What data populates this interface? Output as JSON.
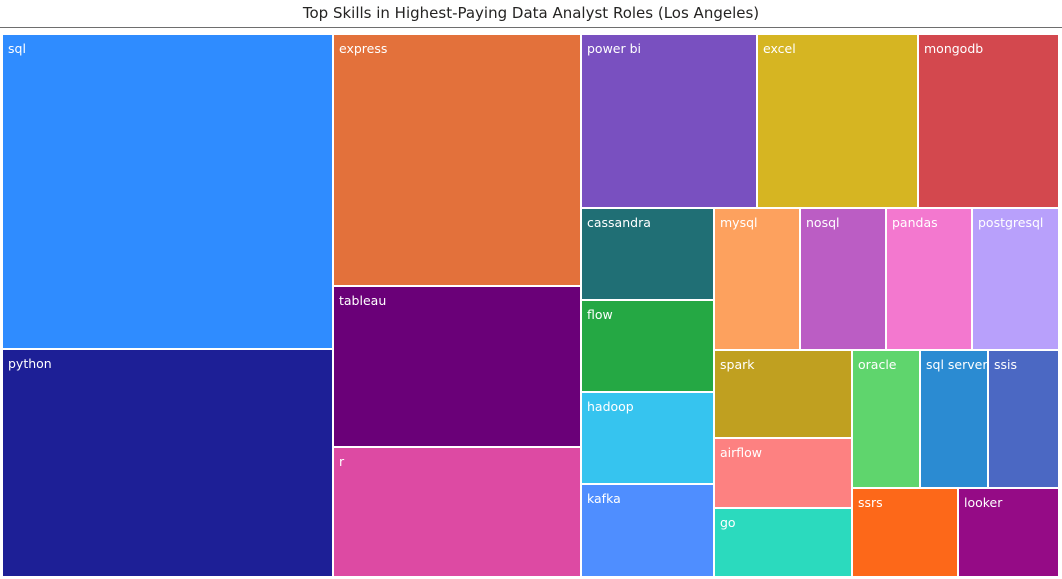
{
  "chart_data": {
    "type": "treemap",
    "title": "Top Skills in Highest-Paying Data Analyst Roles (Los Angeles)",
    "items": [
      {
        "label": "sql",
        "value": 10,
        "color": "#2f8cff"
      },
      {
        "label": "python",
        "value": 7.5,
        "color": "#1d1f96"
      },
      {
        "label": "express",
        "value": 5.5,
        "color": "#e3713b"
      },
      {
        "label": "tableau",
        "value": 4,
        "color": "#6a0078"
      },
      {
        "label": "r",
        "value": 3.5,
        "color": "#dd4aa3"
      },
      {
        "label": "power bi",
        "value": 2.5,
        "color": "#7950c0"
      },
      {
        "label": "excel",
        "value": 2.5,
        "color": "#d6b522"
      },
      {
        "label": "mongodb",
        "value": 2.5,
        "color": "#d3484e"
      },
      {
        "label": "cassandra",
        "value": 1,
        "color": "#206f75"
      },
      {
        "label": "flow",
        "value": 1,
        "color": "#25a844"
      },
      {
        "label": "hadoop",
        "value": 1,
        "color": "#36c4ef"
      },
      {
        "label": "kafka",
        "value": 1,
        "color": "#4f8eff"
      },
      {
        "label": "mysql",
        "value": 1,
        "color": "#fda15e"
      },
      {
        "label": "nosql",
        "value": 1,
        "color": "#bb5dc4"
      },
      {
        "label": "pandas",
        "value": 1,
        "color": "#f378cf"
      },
      {
        "label": "postgresql",
        "value": 1,
        "color": "#b8a0fb"
      },
      {
        "label": "spark",
        "value": 1,
        "color": "#c0a020"
      },
      {
        "label": "airflow",
        "value": 1,
        "color": "#fd8181"
      },
      {
        "label": "go",
        "value": 1,
        "color": "#2bdabe"
      },
      {
        "label": "oracle",
        "value": 1,
        "color": "#5fd56d"
      },
      {
        "label": "sql server",
        "value": 1,
        "color": "#2b8bd2"
      },
      {
        "label": "ssis",
        "value": 1,
        "color": "#4b68c3"
      },
      {
        "label": "ssrs",
        "value": 1,
        "color": "#fd6819"
      },
      {
        "label": "looker",
        "value": 1,
        "color": "#950b86"
      }
    ]
  }
}
